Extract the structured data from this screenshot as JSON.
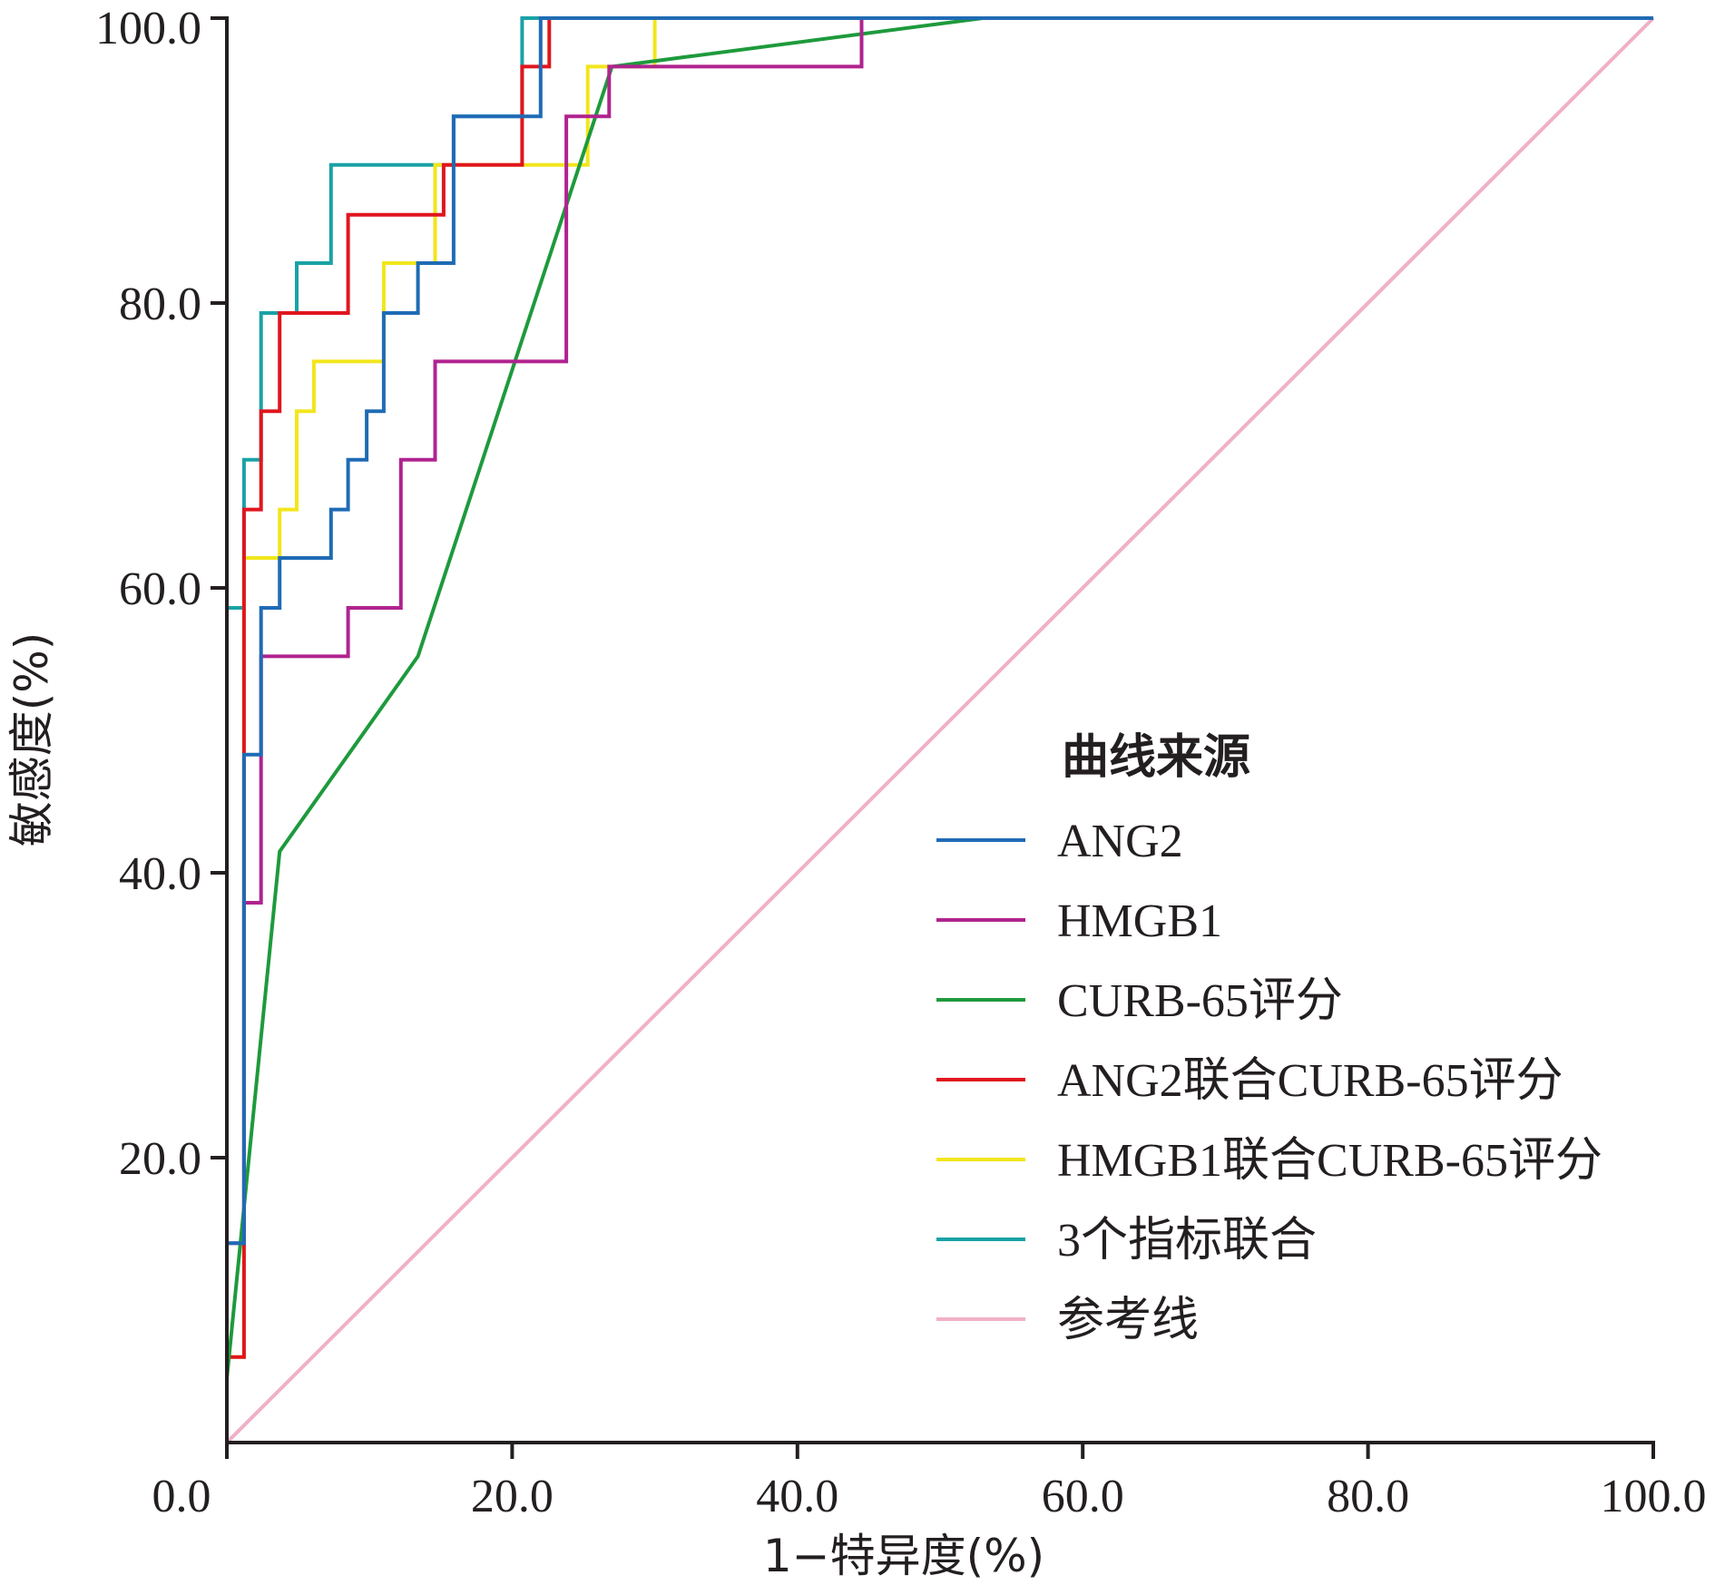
{
  "chart_data": {
    "type": "line",
    "title": "",
    "xlabel": "1−特异度(%)",
    "ylabel": "敏感度(%)",
    "xlim": [
      0,
      100
    ],
    "ylim": [
      0,
      100
    ],
    "xticks": [
      "0.0",
      "20.0",
      "40.0",
      "60.0",
      "80.0",
      "100.0"
    ],
    "yticks": [
      "20.0",
      "40.0",
      "60.0",
      "80.0",
      "100.0"
    ],
    "grid": false,
    "legend_title": "曲线来源",
    "legend_position": "bottom-right",
    "series": [
      {
        "name": "ANG2",
        "color": "#1f6bb5",
        "points": [
          [
            0,
            0
          ],
          [
            0,
            14
          ],
          [
            1.2,
            14
          ],
          [
            1.2,
            48.3
          ],
          [
            2.4,
            48.3
          ],
          [
            2.4,
            58.6
          ],
          [
            3.7,
            58.6
          ],
          [
            3.7,
            62.1
          ],
          [
            7.3,
            62.1
          ],
          [
            7.3,
            65.5
          ],
          [
            8.5,
            65.5
          ],
          [
            8.5,
            69
          ],
          [
            9.8,
            69
          ],
          [
            9.8,
            72.4
          ],
          [
            11,
            72.4
          ],
          [
            11,
            75.9
          ],
          [
            11,
            79.3
          ],
          [
            13.4,
            79.3
          ],
          [
            13.4,
            82.8
          ],
          [
            15.9,
            82.8
          ],
          [
            15.9,
            93.1
          ],
          [
            22,
            93.1
          ],
          [
            22,
            96.6
          ],
          [
            22,
            100
          ],
          [
            100,
            100
          ]
        ]
      },
      {
        "name": "HMGB1",
        "color": "#b0238f",
        "points": [
          [
            0,
            0
          ],
          [
            0,
            14
          ],
          [
            1.2,
            14
          ],
          [
            1.2,
            37.9
          ],
          [
            2.4,
            37.9
          ],
          [
            2.4,
            55.2
          ],
          [
            8.5,
            55.2
          ],
          [
            8.5,
            58.6
          ],
          [
            12.2,
            58.6
          ],
          [
            12.2,
            69
          ],
          [
            14.6,
            69
          ],
          [
            14.6,
            75.9
          ],
          [
            23.8,
            75.9
          ],
          [
            23.8,
            93.1
          ],
          [
            26.8,
            93.1
          ],
          [
            26.8,
            96.6
          ],
          [
            44.5,
            96.6
          ],
          [
            44.5,
            100
          ],
          [
            100,
            100
          ]
        ]
      },
      {
        "name": "CURB-65评分",
        "color": "#1e9a3c",
        "points": [
          [
            0,
            4.5
          ],
          [
            3.7,
            41.5
          ],
          [
            13.4,
            55.2
          ],
          [
            27,
            96.6
          ],
          [
            53,
            100
          ],
          [
            100,
            100
          ]
        ]
      },
      {
        "name": "ANG2联合CURB-65评分",
        "color": "#e0161e",
        "points": [
          [
            0,
            0
          ],
          [
            0,
            6
          ],
          [
            1.2,
            6
          ],
          [
            1.2,
            13.8
          ],
          [
            1.2,
            51.7
          ],
          [
            1.2,
            65.5
          ],
          [
            2.4,
            65.5
          ],
          [
            2.4,
            72.4
          ],
          [
            3.7,
            72.4
          ],
          [
            3.7,
            79.3
          ],
          [
            8.5,
            79.3
          ],
          [
            8.5,
            86.2
          ],
          [
            15.2,
            86.2
          ],
          [
            15.2,
            89.7
          ],
          [
            20.7,
            89.7
          ],
          [
            20.7,
            96.6
          ],
          [
            22.6,
            96.6
          ],
          [
            22.6,
            100
          ],
          [
            100,
            100
          ]
        ]
      },
      {
        "name": "HMGB1联合CURB-65评分",
        "color": "#f2e61c",
        "points": [
          [
            0,
            0
          ],
          [
            0,
            6
          ],
          [
            1.2,
            6
          ],
          [
            1.2,
            51.7
          ],
          [
            1.2,
            62.1
          ],
          [
            3.7,
            62.1
          ],
          [
            3.7,
            65.5
          ],
          [
            4.9,
            65.5
          ],
          [
            4.9,
            72.4
          ],
          [
            6.1,
            72.4
          ],
          [
            6.1,
            75.9
          ],
          [
            11,
            75.9
          ],
          [
            11,
            82.8
          ],
          [
            14.6,
            82.8
          ],
          [
            14.6,
            89.7
          ],
          [
            25.3,
            89.7
          ],
          [
            25.3,
            96.6
          ],
          [
            30,
            96.6
          ],
          [
            30,
            100
          ],
          [
            100,
            100
          ]
        ]
      },
      {
        "name": "3个指标联合",
        "color": "#1aa2a6",
        "points": [
          [
            0,
            0
          ],
          [
            0,
            58.6
          ],
          [
            1.2,
            58.6
          ],
          [
            1.2,
            69
          ],
          [
            2.4,
            69
          ],
          [
            2.4,
            79.3
          ],
          [
            4.9,
            79.3
          ],
          [
            4.9,
            82.8
          ],
          [
            7.3,
            82.8
          ],
          [
            7.3,
            89.7
          ],
          [
            15.9,
            89.7
          ],
          [
            15.9,
            93.1
          ],
          [
            20.7,
            93.1
          ],
          [
            20.7,
            100
          ],
          [
            100,
            100
          ]
        ]
      },
      {
        "name": "参考线",
        "color": "#f0b0c8",
        "points": [
          [
            0,
            0
          ],
          [
            100,
            100
          ]
        ]
      }
    ]
  }
}
